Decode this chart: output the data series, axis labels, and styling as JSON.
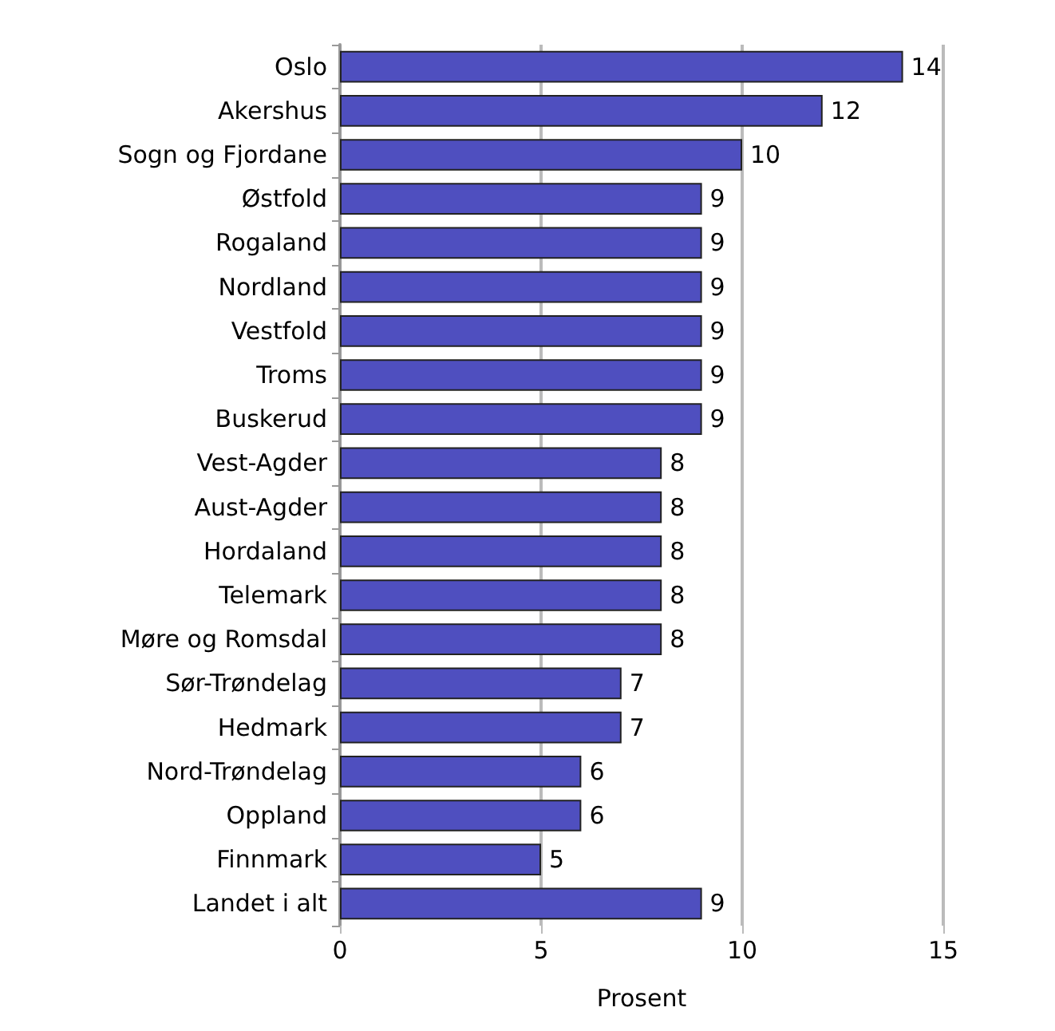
{
  "chart_data": {
    "type": "bar",
    "orientation": "horizontal",
    "xlabel": "Prosent",
    "categories": [
      "Oslo",
      "Akershus",
      "Sogn og Fjordane",
      "Østfold",
      "Rogaland",
      "Nordland",
      "Vestfold",
      "Troms",
      "Buskerud",
      "Vest-Agder",
      "Aust-Agder",
      "Hordaland",
      "Telemark",
      "Møre og Romsdal",
      "Sør-Trøndelag",
      "Hedmark",
      "Nord-Trøndelag",
      "Oppland",
      "Finnmark",
      "Landet i alt"
    ],
    "values": [
      14,
      12,
      10,
      9,
      9,
      9,
      9,
      9,
      9,
      8,
      8,
      8,
      8,
      8,
      7,
      7,
      6,
      6,
      5,
      9
    ],
    "color": "#4f4fbf",
    "xlim": [
      0,
      15
    ],
    "xticks": [
      0,
      5,
      10,
      15
    ],
    "grid": "x",
    "data_labels": true
  }
}
